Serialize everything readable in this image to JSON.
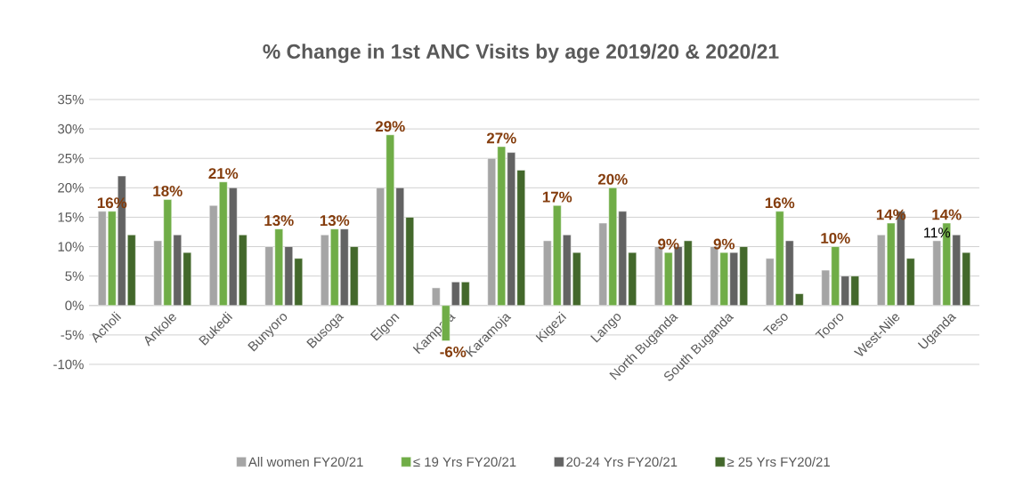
{
  "chart_data": {
    "type": "bar",
    "title": "%  Change in 1st ANC Visits by age 2019/20 & 2020/21",
    "categories": [
      "Acholi",
      "Ankole",
      "Bukedi",
      "Bunyoro",
      "Busoga",
      "Elgon",
      "Kampala",
      "Karamoja",
      "Kigezi",
      "Lango",
      "North Buganda",
      "South Buganda",
      "Teso",
      "Tooro",
      "West-Nile",
      "Uganda"
    ],
    "series": [
      {
        "name": "All women FY20/21",
        "color": "#a5a5a5",
        "values": [
          16,
          11,
          17,
          10,
          12,
          20,
          3,
          25,
          11,
          14,
          10,
          10,
          8,
          6,
          12,
          11
        ],
        "value_labels": [
          null,
          null,
          null,
          null,
          null,
          null,
          null,
          null,
          null,
          null,
          null,
          null,
          null,
          null,
          null,
          "11%"
        ]
      },
      {
        "name": "≤ 19 Yrs FY20/21",
        "color": "#70ad47",
        "values": [
          16,
          18,
          21,
          13,
          13,
          29,
          -6,
          27,
          17,
          20,
          9,
          9,
          16,
          10,
          14,
          14
        ],
        "value_labels": [
          "16%",
          "18%",
          "21%",
          "13%",
          "13%",
          "29%",
          "-6%",
          "27%",
          "17%",
          "20%",
          "9%",
          "9%",
          "16%",
          "10%",
          "14%",
          "14%"
        ]
      },
      {
        "name": "20-24 Yrs FY20/21",
        "color": "#636363",
        "values": [
          22,
          12,
          20,
          10,
          13,
          20,
          4,
          26,
          12,
          16,
          10,
          9,
          11,
          5,
          16,
          12
        ]
      },
      {
        "name": "≥ 25 Yrs FY20/21",
        "color": "#43682b",
        "values": [
          12,
          9,
          12,
          8,
          10,
          15,
          4,
          23,
          9,
          9,
          11,
          10,
          2,
          5,
          8,
          9
        ]
      }
    ],
    "ylim": [
      -10,
      35
    ],
    "yticks": [
      {
        "value": -10,
        "label": "-10%"
      },
      {
        "value": -5,
        "label": "-5%"
      },
      {
        "value": 0,
        "label": "0%"
      },
      {
        "value": 5,
        "label": "5%"
      },
      {
        "value": 10,
        "label": "10%"
      },
      {
        "value": 15,
        "label": "15%"
      },
      {
        "value": 20,
        "label": "20%"
      },
      {
        "value": 25,
        "label": "25%"
      },
      {
        "value": 30,
        "label": "30%"
      },
      {
        "value": 35,
        "label": "35%"
      }
    ],
    "grid": "y",
    "legend": "bottom"
  }
}
